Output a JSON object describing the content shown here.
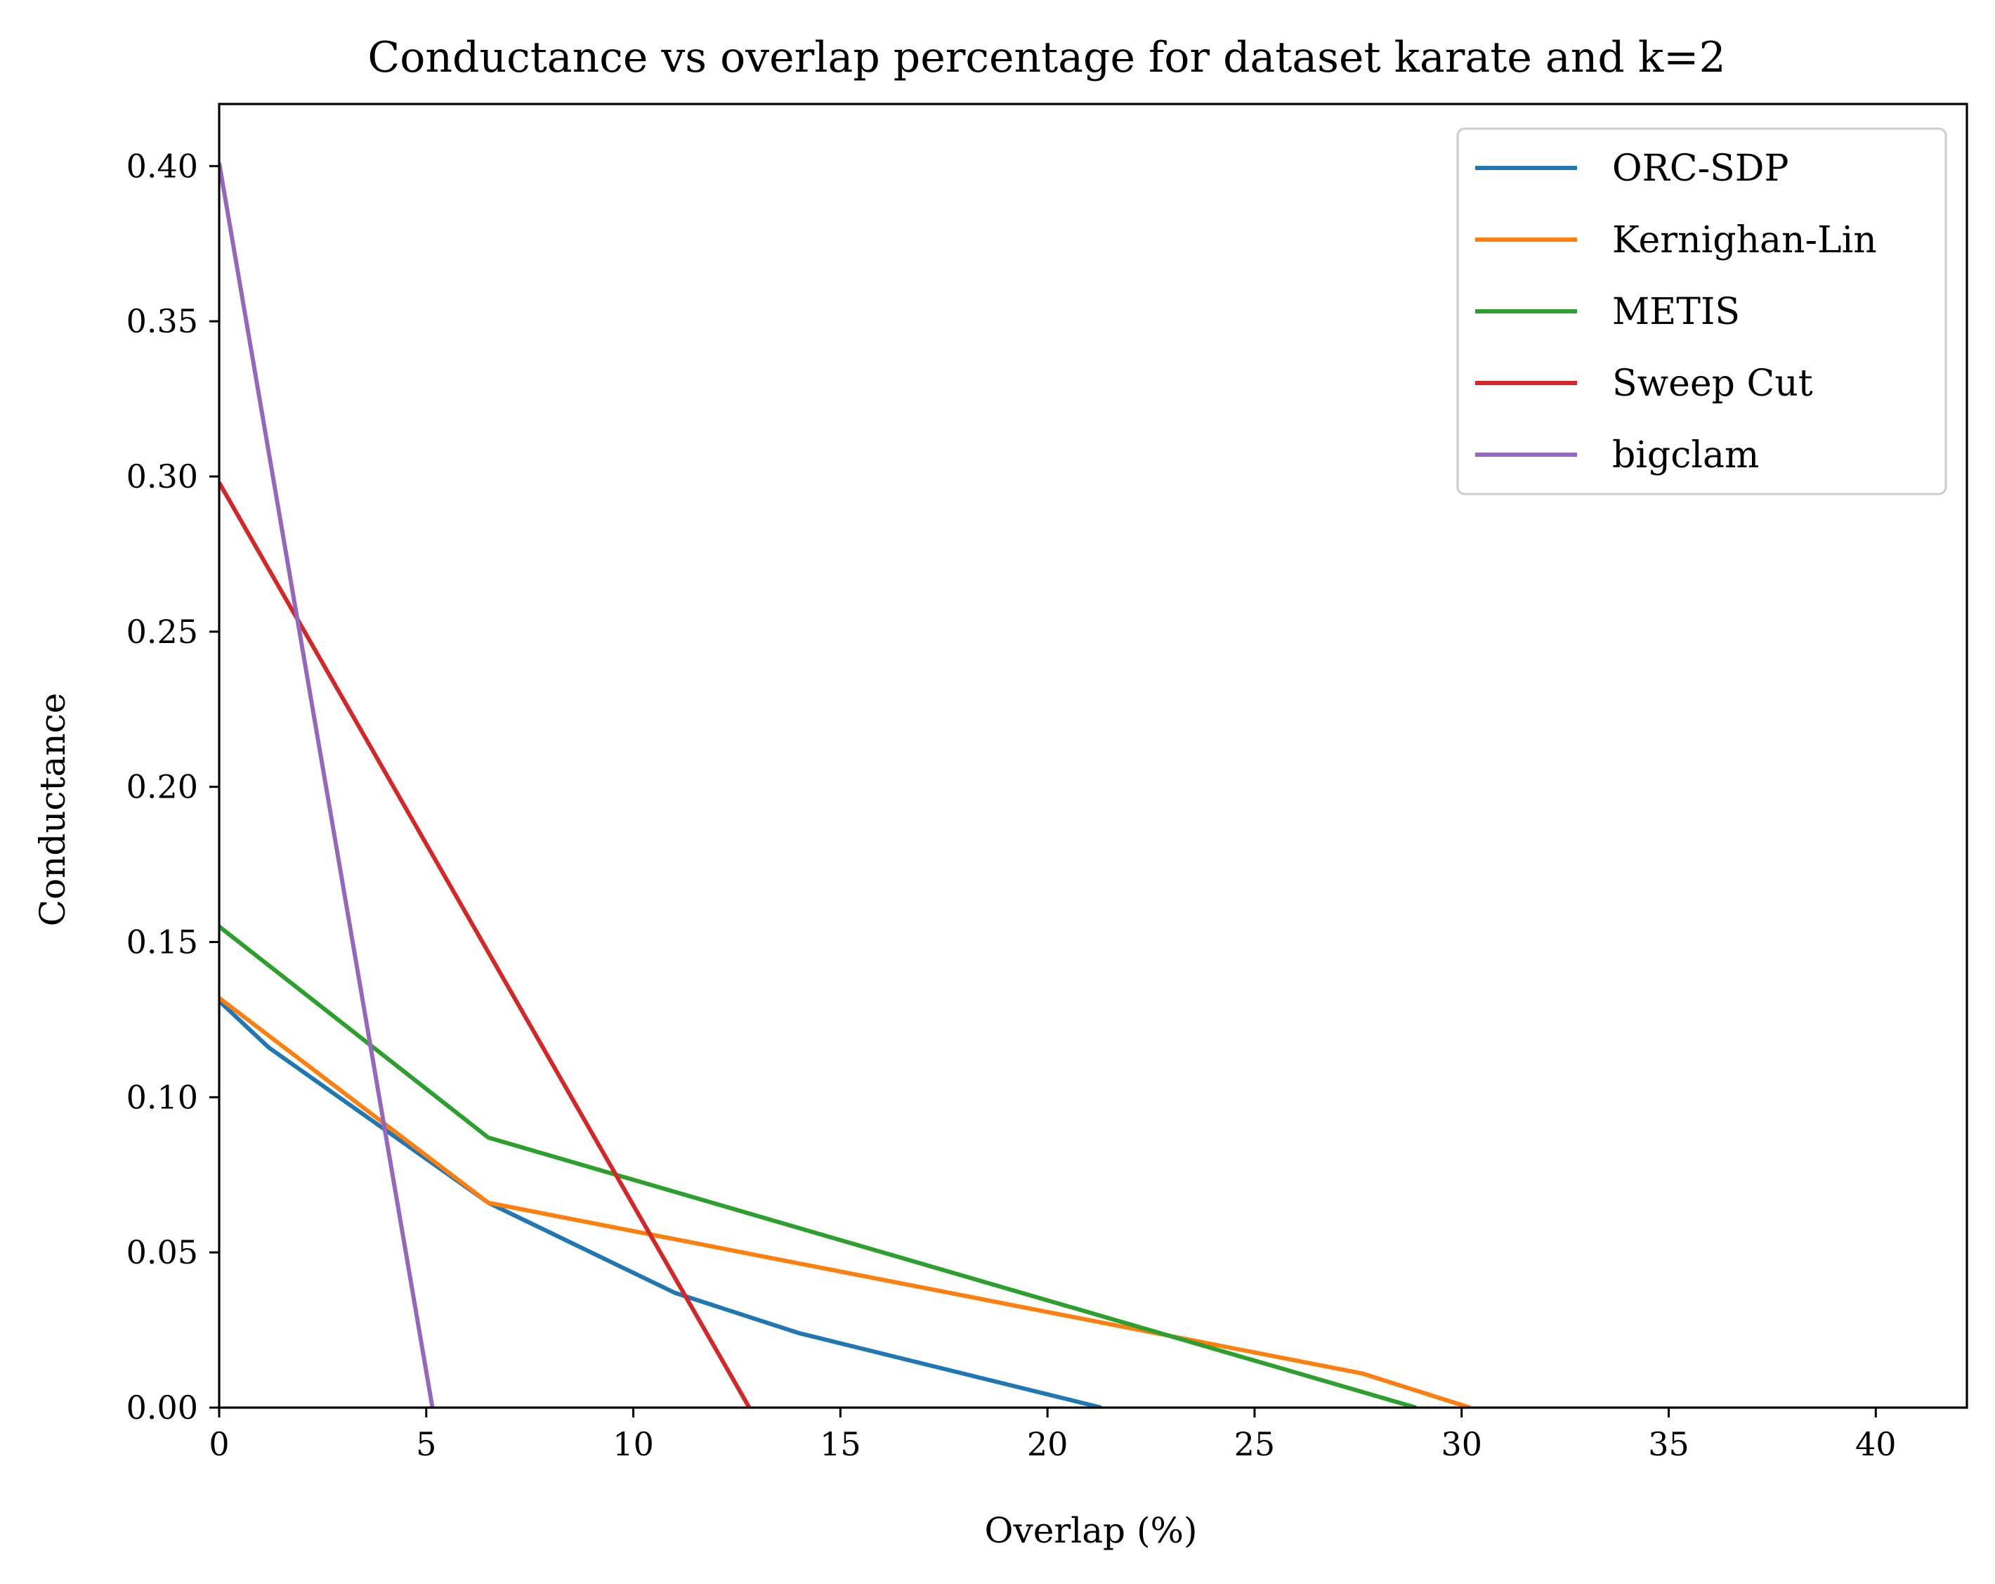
{
  "chart_data": {
    "type": "line",
    "title": "Conductance vs overlap percentage for dataset karate and k=2",
    "xlabel": "Overlap (%)",
    "ylabel": "Conductance",
    "xlim": [
      0,
      42.2
    ],
    "ylim": [
      0,
      0.42
    ],
    "xticks": [
      0,
      5,
      10,
      15,
      20,
      25,
      30,
      35,
      40
    ],
    "xtick_labels": [
      "0",
      "5",
      "10",
      "15",
      "20",
      "25",
      "30",
      "35",
      "40"
    ],
    "yticks": [
      0,
      0.05,
      0.1,
      0.15,
      0.2,
      0.25,
      0.3,
      0.35,
      0.4
    ],
    "ytick_labels": [
      "0.00",
      "0.05",
      "0.10",
      "0.15",
      "0.20",
      "0.25",
      "0.30",
      "0.35",
      "0.40"
    ],
    "grid": false,
    "legend_position": "top-right",
    "series": [
      {
        "name": "ORC-SDP",
        "color": "#1f77b4",
        "x": [
          0,
          1.2,
          6.5,
          11.0,
          14.0,
          21.3
        ],
        "y": [
          0.131,
          0.116,
          0.066,
          0.037,
          0.024,
          0.0
        ]
      },
      {
        "name": "Kernighan-Lin",
        "color": "#ff7f0e",
        "x": [
          0,
          6.5,
          27.6,
          30.2
        ],
        "y": [
          0.132,
          0.066,
          0.011,
          0.0
        ]
      },
      {
        "name": "METIS",
        "color": "#2ca02c",
        "x": [
          0,
          6.5,
          28.9
        ],
        "y": [
          0.155,
          0.087,
          0.0
        ]
      },
      {
        "name": "Sweep Cut",
        "color": "#d62728",
        "x": [
          0,
          12.8
        ],
        "y": [
          0.298,
          0.0
        ]
      },
      {
        "name": "bigclam",
        "color": "#9467bd",
        "x": [
          0,
          5.15
        ],
        "y": [
          0.401,
          0.0
        ]
      }
    ]
  }
}
